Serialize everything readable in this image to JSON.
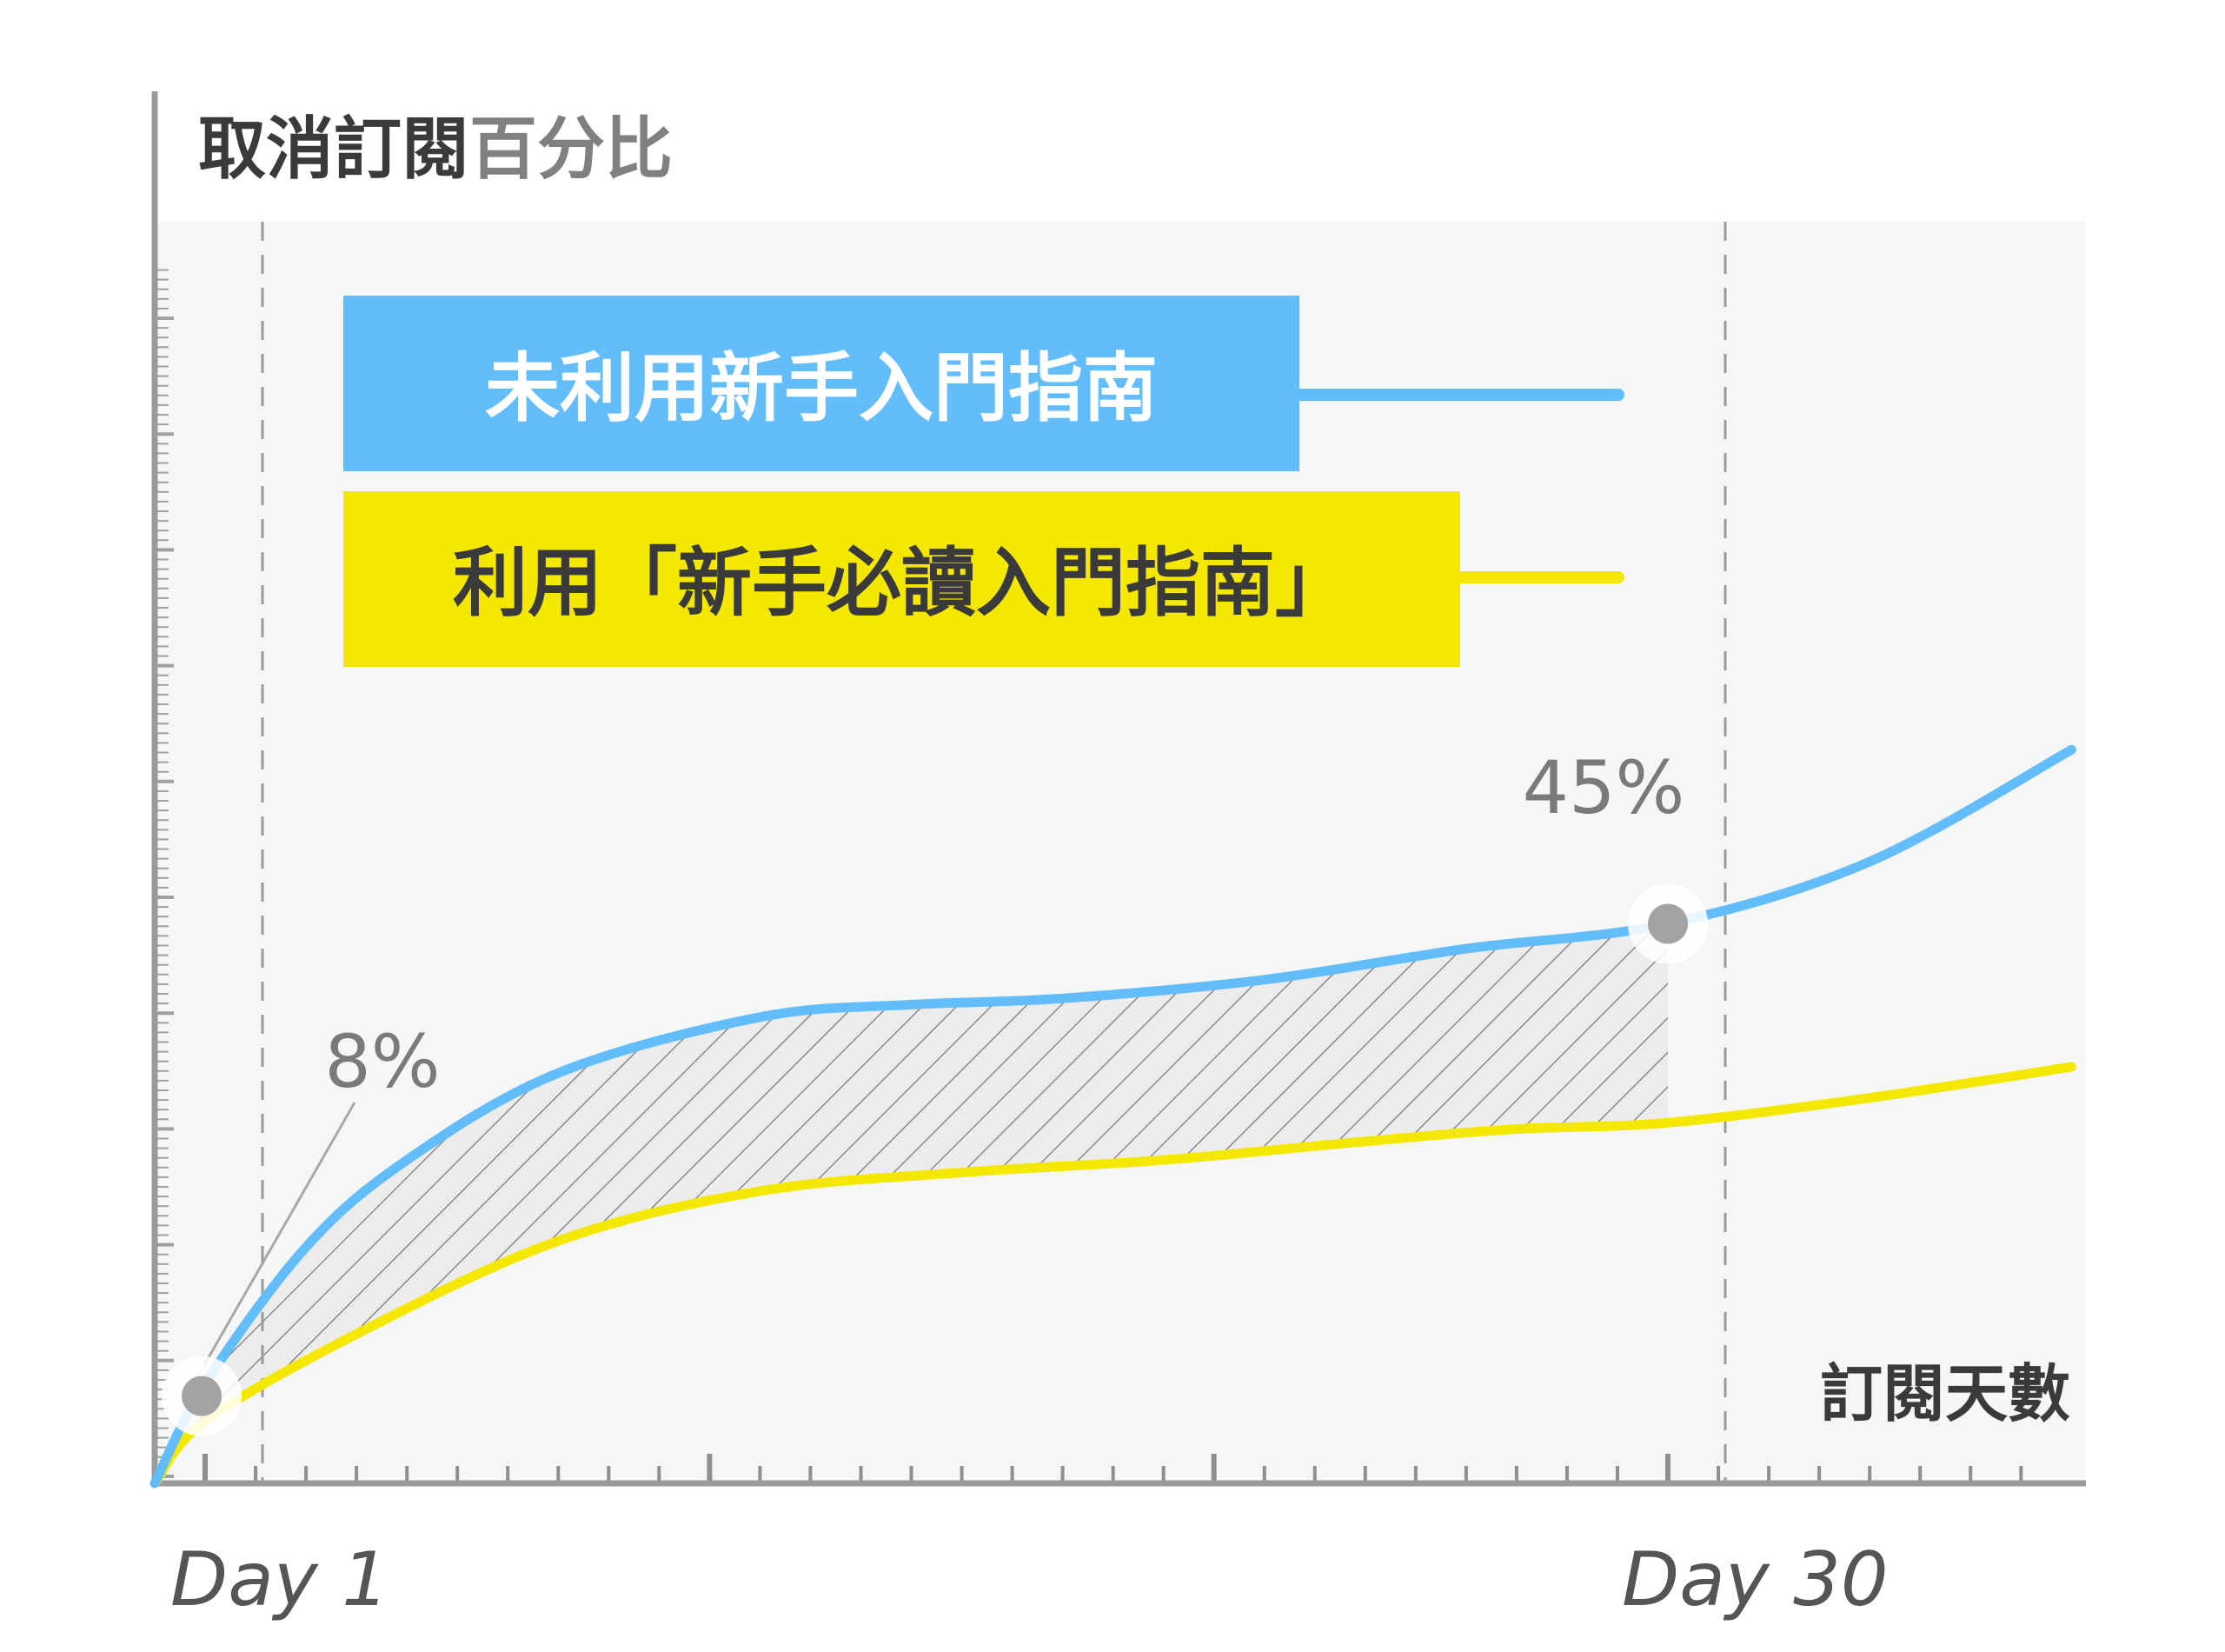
{
  "chart_data": {
    "type": "line",
    "title_main": "取消訂閱",
    "title_sub": "百分比",
    "xlabel": "訂閱天數",
    "x_ticks": [
      "Day 1",
      "Day 30"
    ],
    "grid": false,
    "legend_position": "top-left",
    "series": [
      {
        "name": "未利用新手入門指南",
        "color": "#64bdfb",
        "label_color": "#ffffff",
        "points": [
          [
            0,
            0
          ],
          [
            1,
            8
          ],
          [
            3,
            19
          ],
          [
            5,
            26
          ],
          [
            8,
            33
          ],
          [
            12,
            37.5
          ],
          [
            15,
            38.5
          ],
          [
            18,
            39
          ],
          [
            22,
            40.5
          ],
          [
            26,
            43
          ],
          [
            30,
            45
          ],
          [
            34,
            50
          ],
          [
            38,
            59
          ]
        ]
      },
      {
        "name": "利用「新手必讀入門指南」",
        "color": "#f5e800",
        "label_color": "#3a3a3a",
        "points": [
          [
            0,
            0
          ],
          [
            1,
            5
          ],
          [
            4,
            12
          ],
          [
            8,
            19.5
          ],
          [
            12,
            23.5
          ],
          [
            16,
            25
          ],
          [
            20,
            26
          ],
          [
            24,
            27.5
          ],
          [
            27,
            28.5
          ],
          [
            30,
            29
          ],
          [
            34,
            31
          ],
          [
            38,
            33.5
          ]
        ]
      }
    ],
    "shaded_between_series": {
      "x_from": 0,
      "x_to": 30
    },
    "annotations": [
      {
        "text": "8%",
        "x": 1,
        "y": 8,
        "series": 0
      },
      {
        "text": "45%",
        "x": 30,
        "y": 45,
        "series": 0
      }
    ]
  }
}
